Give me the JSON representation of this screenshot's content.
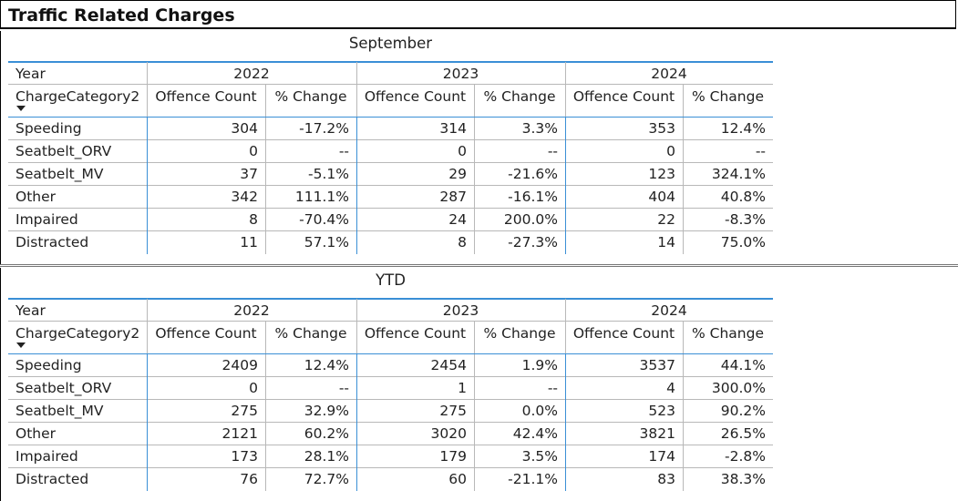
{
  "title": "Traffic Related Charges",
  "tables": [
    {
      "caption": "September",
      "year_label": "Year",
      "years": [
        "2022",
        "2023",
        "2024"
      ],
      "category_label": "ChargeCategory2",
      "measures": [
        "Offence Count",
        "% Change"
      ],
      "rows": [
        [
          "Speeding",
          "304",
          "-17.2%",
          "314",
          "3.3%",
          "353",
          "12.4%"
        ],
        [
          "Seatbelt_ORV",
          "0",
          "--",
          "0",
          "--",
          "0",
          "--"
        ],
        [
          "Seatbelt_MV",
          "37",
          "-5.1%",
          "29",
          "-21.6%",
          "123",
          "324.1%"
        ],
        [
          "Other",
          "342",
          "111.1%",
          "287",
          "-16.1%",
          "404",
          "40.8%"
        ],
        [
          "Impaired",
          "8",
          "-70.4%",
          "24",
          "200.0%",
          "22",
          "-8.3%"
        ],
        [
          "Distracted",
          "11",
          "57.1%",
          "8",
          "-27.3%",
          "14",
          "75.0%"
        ]
      ]
    },
    {
      "caption": "YTD",
      "year_label": "Year",
      "years": [
        "2022",
        "2023",
        "2024"
      ],
      "category_label": "ChargeCategory2",
      "measures": [
        "Offence Count",
        "% Change"
      ],
      "rows": [
        [
          "Speeding",
          "2409",
          "12.4%",
          "2454",
          "1.9%",
          "3537",
          "44.1%"
        ],
        [
          "Seatbelt_ORV",
          "0",
          "--",
          "1",
          "--",
          "4",
          "300.0%"
        ],
        [
          "Seatbelt_MV",
          "275",
          "32.9%",
          "275",
          "0.0%",
          "523",
          "90.2%"
        ],
        [
          "Other",
          "2121",
          "60.2%",
          "3020",
          "42.4%",
          "3821",
          "26.5%"
        ],
        [
          "Impaired",
          "173",
          "28.1%",
          "179",
          "3.5%",
          "174",
          "-2.8%"
        ],
        [
          "Distracted",
          "76",
          "72.7%",
          "60",
          "-21.1%",
          "83",
          "38.3%"
        ]
      ]
    }
  ]
}
